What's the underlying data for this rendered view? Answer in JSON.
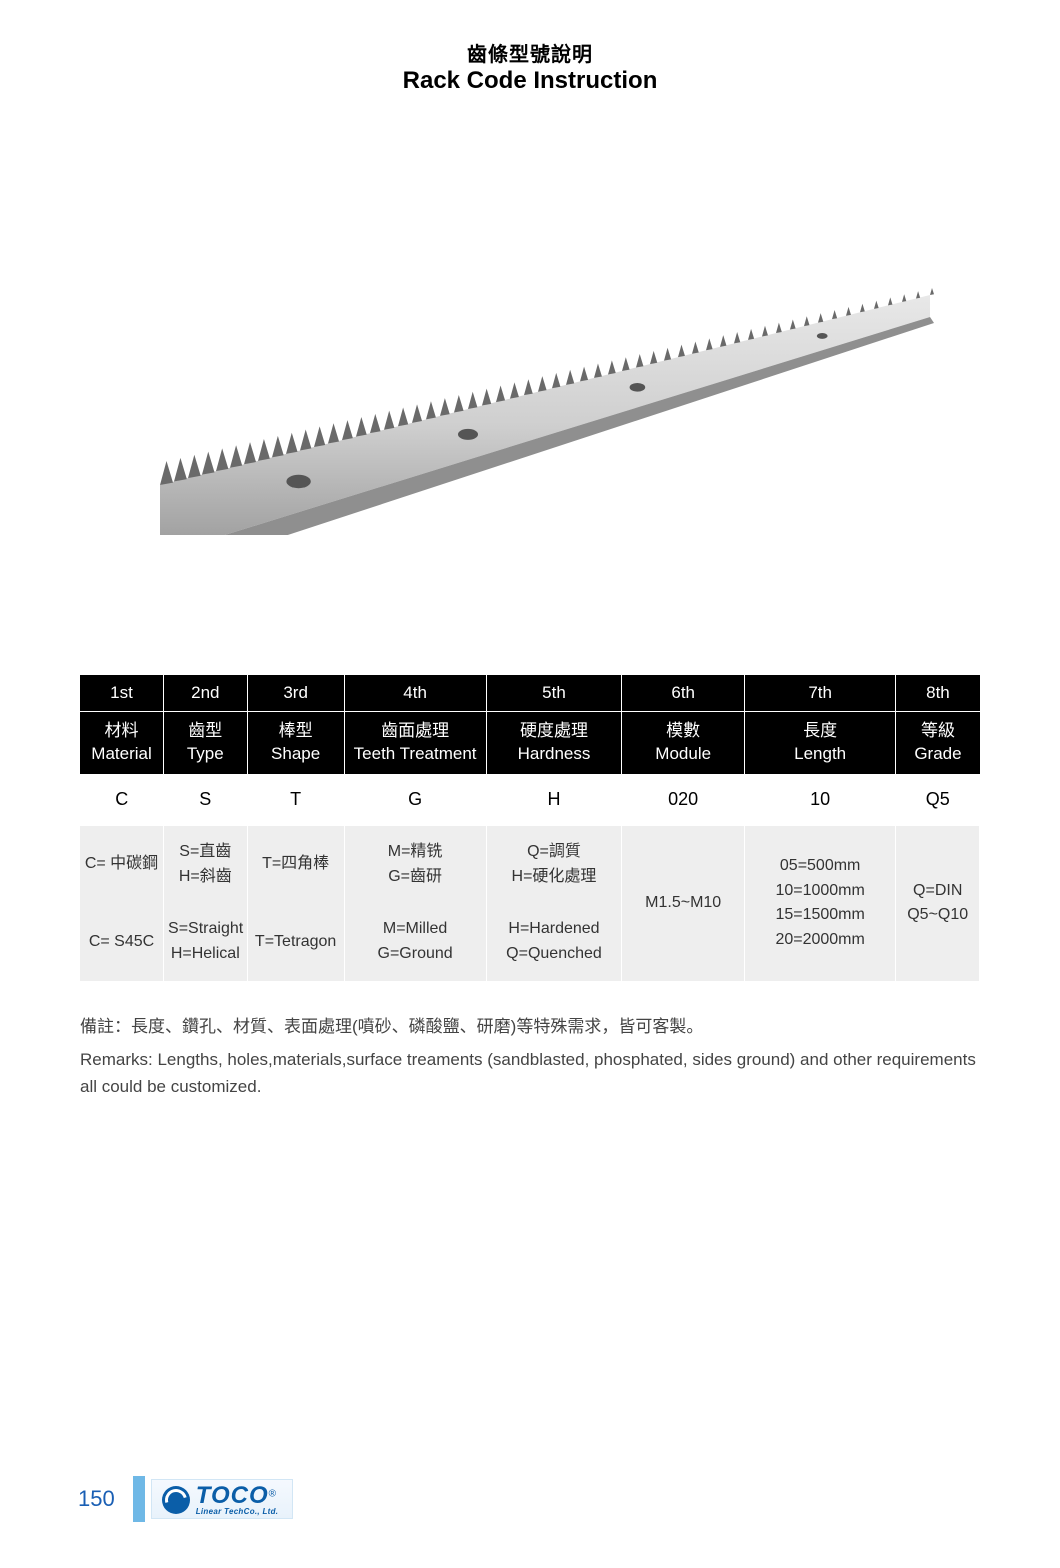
{
  "title": {
    "cn": "齒條型號說明",
    "en": "Rack Code Instruction"
  },
  "table": {
    "col_widths": [
      "8.6%",
      "8.6%",
      "10%",
      "14.6%",
      "14%",
      "12.6%",
      "15.6%",
      "8.6%"
    ],
    "positions": [
      "1st",
      "2nd",
      "3rd",
      "4th",
      "5th",
      "6th",
      "7th",
      "8th"
    ],
    "labels": [
      {
        "cn": "材料",
        "en": "Material"
      },
      {
        "cn": "齒型",
        "en": "Type"
      },
      {
        "cn": "棒型",
        "en": "Shape"
      },
      {
        "cn": "齒面處理",
        "en": "Teeth Treatment"
      },
      {
        "cn": "硬度處理",
        "en": "Hardness"
      },
      {
        "cn": "模數",
        "en": "Module"
      },
      {
        "cn": "長度",
        "en": "Length"
      },
      {
        "cn": "等級",
        "en": "Grade"
      }
    ],
    "example": [
      "C",
      "S",
      "T",
      "G",
      "H",
      "020",
      "10",
      "Q5"
    ],
    "desc_cn": [
      "C= 中碳鋼",
      "S=直齒\nH=斜齒",
      "T=四角棒",
      "M=精铣\nG=齒研",
      "Q=調質\nH=硬化處理",
      "M1.5~M10",
      "05=500mm\n10=1000mm\n15=1500mm\n20=2000mm",
      "Q=DIN\nQ5~Q10"
    ],
    "desc_en": [
      "C= S45C",
      "S=Straight\nH=Helical",
      "T=Tetragon",
      "M=Milled\nG=Ground",
      "H=Hardened\nQ=Quenched",
      "",
      "",
      ""
    ]
  },
  "remarks": {
    "cn": "備註：長度、鑽孔、材質、表面處理(噴砂、磷酸鹽、研磨)等特殊需求，皆可客製。",
    "en": "Remarks: Lengths, holes,materials,surface treaments (sandblasted, phosphated, sides ground) and other requirements all could be customized."
  },
  "page_number": "150",
  "logo": {
    "main": "TOCO",
    "sub": "Linear TechCo., Ltd."
  },
  "colors": {
    "header_bg": "#000000",
    "header_fg": "#ffffff",
    "alt_bg": "#eeeeee",
    "page_num": "#1a5fb4",
    "logo": "#0b5ea8",
    "bar": "#6fb8e6"
  },
  "rack_image": {
    "teeth_count": 56,
    "holes": [
      0.18,
      0.4,
      0.62,
      0.86
    ],
    "body_light": "#d8d8d8",
    "body_dark": "#8f8f8f",
    "tooth_color": "#6a6a6a",
    "hole_color": "#555555"
  }
}
